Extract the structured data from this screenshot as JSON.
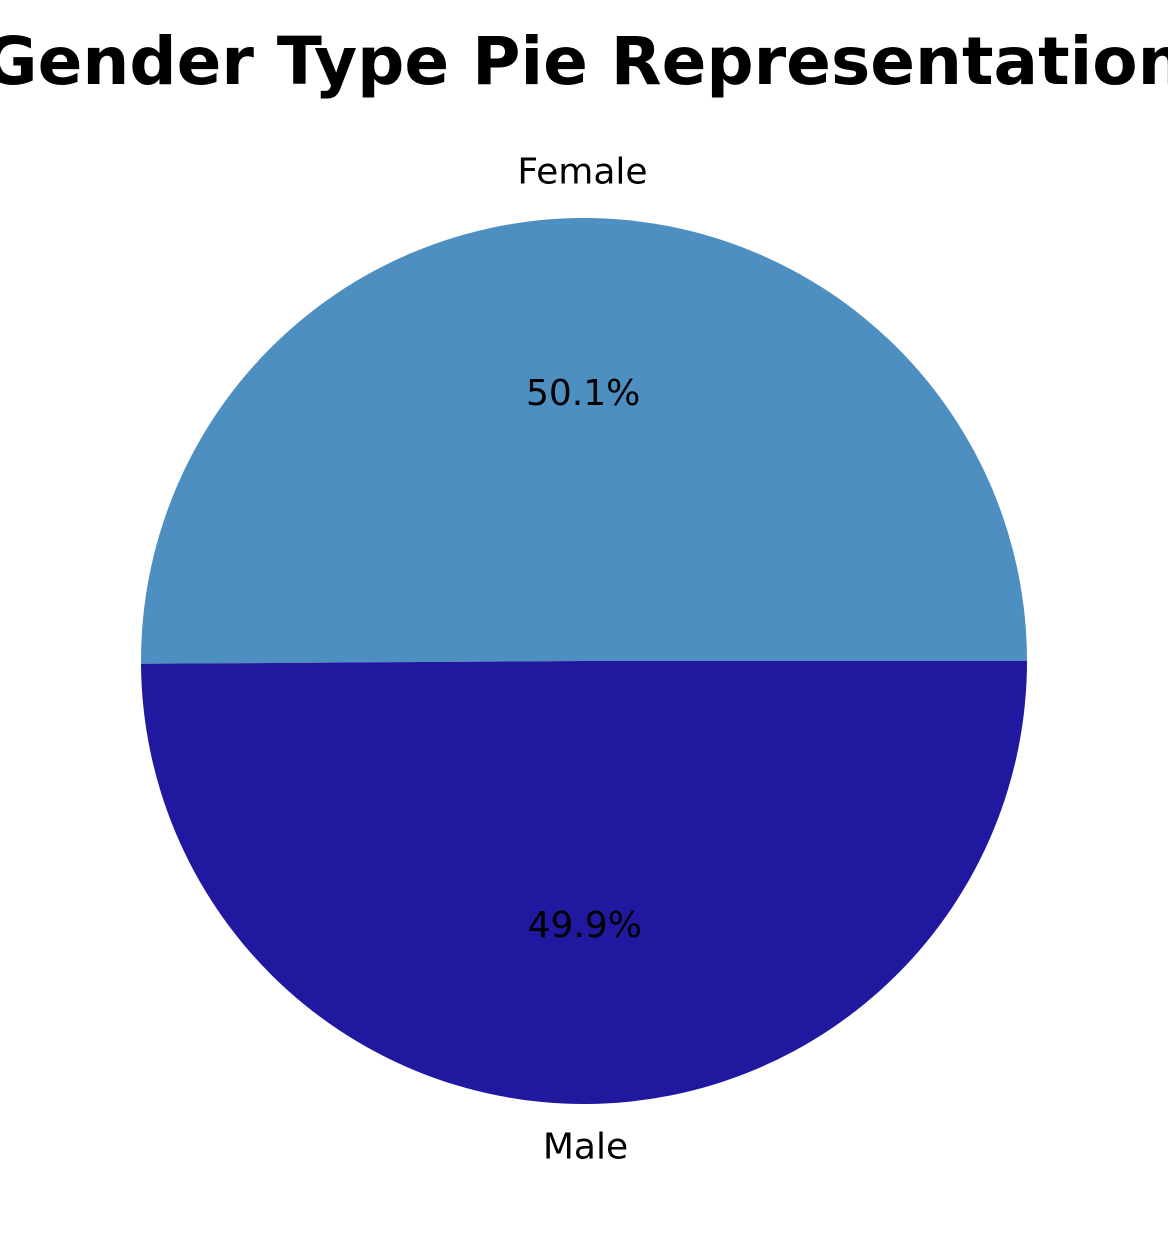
{
  "chart_data": {
    "type": "pie",
    "title": "Gender Type Pie Representation",
    "slices": [
      {
        "label": "Female",
        "value": 50.1,
        "pct_label": "50.1%",
        "color": "#4e8fc1"
      },
      {
        "label": "Male",
        "value": 49.9,
        "pct_label": "49.9%",
        "color": "#2118a0"
      }
    ],
    "start_angle_deg": 0,
    "direction": "counterclockwise"
  }
}
